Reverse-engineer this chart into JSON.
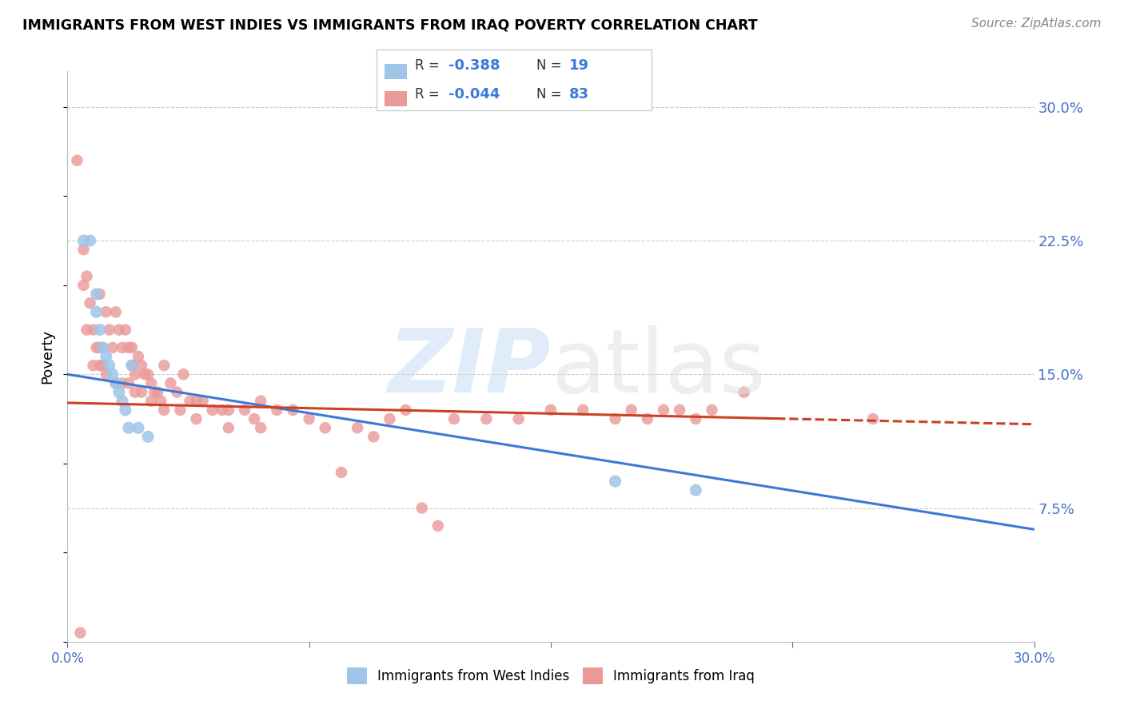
{
  "title": "IMMIGRANTS FROM WEST INDIES VS IMMIGRANTS FROM IRAQ POVERTY CORRELATION CHART",
  "source": "Source: ZipAtlas.com",
  "ylabel": "Poverty",
  "right_yticks": [
    "30.0%",
    "22.5%",
    "15.0%",
    "7.5%"
  ],
  "right_ytick_vals": [
    0.3,
    0.225,
    0.15,
    0.075
  ],
  "xmin": 0.0,
  "xmax": 0.3,
  "ymin": 0.0,
  "ymax": 0.32,
  "blue_color": "#9fc5e8",
  "pink_color": "#ea9999",
  "line_blue": "#3c78d8",
  "line_pink": "#cc4125",
  "axis_color": "#4472c4",
  "grid_color": "#cccccc",
  "west_indies_x": [
    0.005,
    0.007,
    0.009,
    0.009,
    0.01,
    0.011,
    0.012,
    0.013,
    0.014,
    0.015,
    0.016,
    0.017,
    0.018,
    0.019,
    0.02,
    0.022,
    0.025,
    0.17,
    0.195
  ],
  "west_indies_y": [
    0.225,
    0.225,
    0.195,
    0.185,
    0.175,
    0.165,
    0.16,
    0.155,
    0.15,
    0.145,
    0.14,
    0.135,
    0.13,
    0.12,
    0.155,
    0.12,
    0.115,
    0.09,
    0.085
  ],
  "iraq_x": [
    0.003,
    0.004,
    0.005,
    0.006,
    0.007,
    0.008,
    0.009,
    0.01,
    0.01,
    0.011,
    0.012,
    0.013,
    0.014,
    0.015,
    0.016,
    0.017,
    0.018,
    0.019,
    0.02,
    0.02,
    0.021,
    0.022,
    0.023,
    0.024,
    0.025,
    0.026,
    0.027,
    0.028,
    0.029,
    0.03,
    0.032,
    0.034,
    0.036,
    0.038,
    0.04,
    0.042,
    0.045,
    0.048,
    0.05,
    0.055,
    0.058,
    0.06,
    0.065,
    0.07,
    0.075,
    0.08,
    0.085,
    0.09,
    0.095,
    0.1,
    0.105,
    0.11,
    0.115,
    0.12,
    0.13,
    0.14,
    0.15,
    0.16,
    0.17,
    0.175,
    0.18,
    0.185,
    0.19,
    0.195,
    0.2,
    0.005,
    0.006,
    0.008,
    0.01,
    0.012,
    0.015,
    0.017,
    0.019,
    0.021,
    0.023,
    0.026,
    0.03,
    0.035,
    0.04,
    0.05,
    0.06,
    0.25,
    0.21
  ],
  "iraq_y": [
    0.27,
    0.005,
    0.22,
    0.205,
    0.19,
    0.175,
    0.165,
    0.195,
    0.165,
    0.155,
    0.185,
    0.175,
    0.165,
    0.185,
    0.175,
    0.165,
    0.175,
    0.165,
    0.165,
    0.155,
    0.15,
    0.16,
    0.155,
    0.15,
    0.15,
    0.145,
    0.14,
    0.14,
    0.135,
    0.155,
    0.145,
    0.14,
    0.15,
    0.135,
    0.135,
    0.135,
    0.13,
    0.13,
    0.13,
    0.13,
    0.125,
    0.135,
    0.13,
    0.13,
    0.125,
    0.12,
    0.095,
    0.12,
    0.115,
    0.125,
    0.13,
    0.075,
    0.065,
    0.125,
    0.125,
    0.125,
    0.13,
    0.13,
    0.125,
    0.13,
    0.125,
    0.13,
    0.13,
    0.125,
    0.13,
    0.2,
    0.175,
    0.155,
    0.155,
    0.15,
    0.145,
    0.145,
    0.145,
    0.14,
    0.14,
    0.135,
    0.13,
    0.13,
    0.125,
    0.12,
    0.12,
    0.125,
    0.14
  ],
  "blue_line_x0": 0.0,
  "blue_line_y0": 0.15,
  "blue_line_x1": 0.3,
  "blue_line_y1": 0.063,
  "pink_line_x0": 0.0,
  "pink_line_y0": 0.134,
  "pink_line_x1": 0.3,
  "pink_line_y1": 0.122
}
